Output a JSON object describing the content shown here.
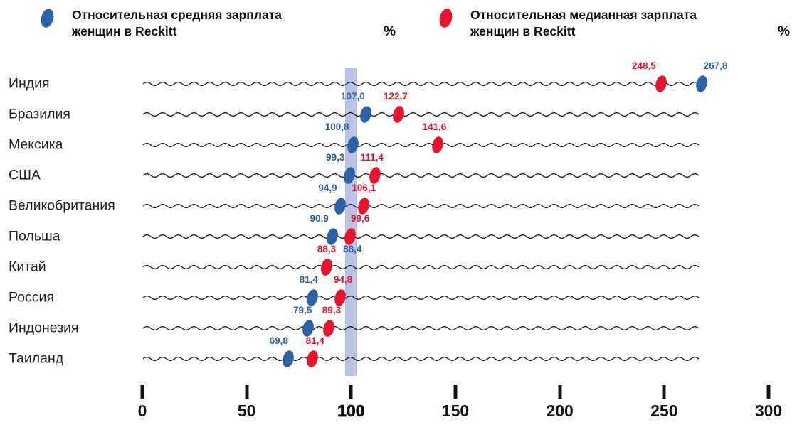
{
  "legend": [
    {
      "label": "Относительная средняя зарплата женщин в Reckitt",
      "unit": "%"
    },
    {
      "label": "Относительная медианная зарплата женщин в Reckitt",
      "unit": "%"
    }
  ],
  "chart_data": {
    "type": "scatter",
    "subtype": "horizontal-dot-plot",
    "categories": [
      "Индия",
      "Бразилия",
      "Мексика",
      "США",
      "Великобритания",
      "Польша",
      "Китай",
      "Россия",
      "Индонезия",
      "Таиланд"
    ],
    "series": [
      {
        "name": "Относительная средняя зарплата женщин в Reckitt",
        "color": "#2d61a6",
        "values": [
          267.8,
          107.0,
          100.8,
          99.3,
          94.9,
          90.9,
          88.4,
          81.4,
          79.5,
          69.8
        ],
        "labels": [
          "267,8",
          "107,0",
          "100,8",
          "99,3",
          "94,9",
          "90,9",
          "88,4",
          "81,4",
          "79,5",
          "69,8"
        ],
        "label_dx": [
          20,
          -18,
          -22,
          -20,
          -18,
          -18,
          36,
          -5,
          -8,
          -13
        ]
      },
      {
        "name": "Относительная медианная зарплата женщин в Reckitt",
        "color": "#e8132c",
        "values": [
          248.5,
          122.7,
          141.6,
          111.4,
          106.1,
          99.6,
          88.3,
          94.8,
          89.3,
          81.4
        ],
        "labels": [
          "248,5",
          "122,7",
          "141,6",
          "111,4",
          "106,1",
          "99,6",
          "88,3",
          "94,8",
          "89,3",
          "81,4"
        ],
        "label_dx": [
          -24,
          -4,
          -5,
          -4,
          0,
          14,
          0,
          4,
          4,
          4
        ]
      }
    ],
    "xlim": [
      0,
      300
    ],
    "xticks": [
      0,
      50,
      100,
      150,
      200,
      250,
      300
    ],
    "xtick_labels": [
      "0",
      "50",
      "100",
      "150",
      "200",
      "250",
      "300"
    ],
    "reference_band": {
      "value": 100,
      "color": "#b8c2e4"
    },
    "unit": "%",
    "grid": "wavy-row-lines",
    "legend_position": "top"
  }
}
